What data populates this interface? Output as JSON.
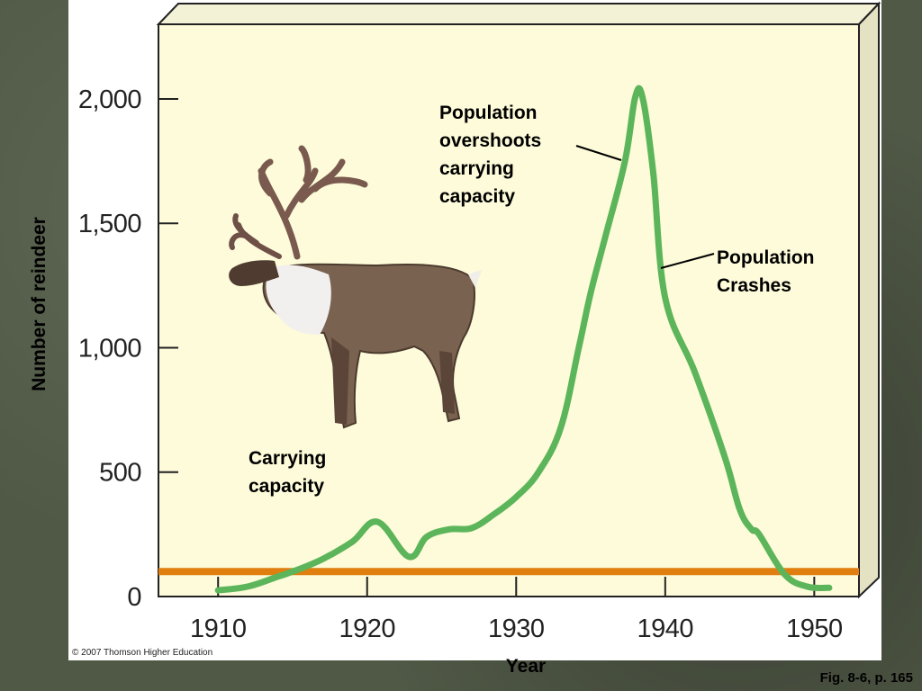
{
  "chart_data": {
    "type": "line",
    "xlabel": "Year",
    "ylabel": "Number of reindeer",
    "xlim": [
      1906,
      1953
    ],
    "ylim": [
      0,
      2300
    ],
    "x_ticks": [
      1910,
      1920,
      1930,
      1940,
      1950
    ],
    "x_tick_labels": [
      "1910",
      "1920",
      "1930",
      "1940",
      "1950"
    ],
    "y_ticks": [
      0,
      500,
      1000,
      1500,
      2000
    ],
    "y_tick_labels": [
      "0",
      "500",
      "1,000",
      "1,500",
      "2,000"
    ],
    "grid": false,
    "series": [
      {
        "name": "",
        "color": "#5cb55a",
        "x": [
          1910,
          1912,
          1914,
          1915,
          1917,
          1919,
          1920.7,
          1922.8,
          1924,
          1925.5,
          1927,
          1928.5,
          1930,
          1931.5,
          1933,
          1934.2,
          1935,
          1936,
          1937.3,
          1938,
          1938.5,
          1939.2,
          1940,
          1942,
          1944,
          1945,
          1945.8,
          1946.3,
          1948,
          1949.5,
          1951
        ],
        "values": [
          25,
          40,
          80,
          100,
          150,
          220,
          300,
          160,
          240,
          270,
          275,
          330,
          400,
          500,
          680,
          1000,
          1220,
          1450,
          1750,
          2010,
          2000,
          1700,
          1200,
          900,
          560,
          350,
          270,
          250,
          90,
          40,
          35
        ]
      },
      {
        "name": "",
        "color": "#e07f10",
        "x": [
          1906,
          1953
        ],
        "values": [
          100,
          100
        ]
      }
    ],
    "annotations": [
      {
        "text_lines": [
          "Population",
          "overshoots",
          "carrying",
          "capacity"
        ],
        "points_to": {
          "x": 1936.9,
          "y": 1710
        }
      },
      {
        "text_lines": [
          "Population",
          "Crashes"
        ],
        "points_to": {
          "x": 1939.7,
          "y": 1370
        }
      },
      {
        "text_lines": [
          "Carrying",
          "capacity"
        ]
      }
    ]
  },
  "copyright": "© 2007 Thomson Higher Education",
  "figure_caption": "Fig. 8-6, p. 165",
  "colors": {
    "plot_background": "#fdfbd9",
    "curve": "#5cb55a",
    "carrying_capacity_line": "#e07f10",
    "box_side": "#e4e2c3",
    "slide_background": "#505846"
  },
  "illustration": "reindeer"
}
